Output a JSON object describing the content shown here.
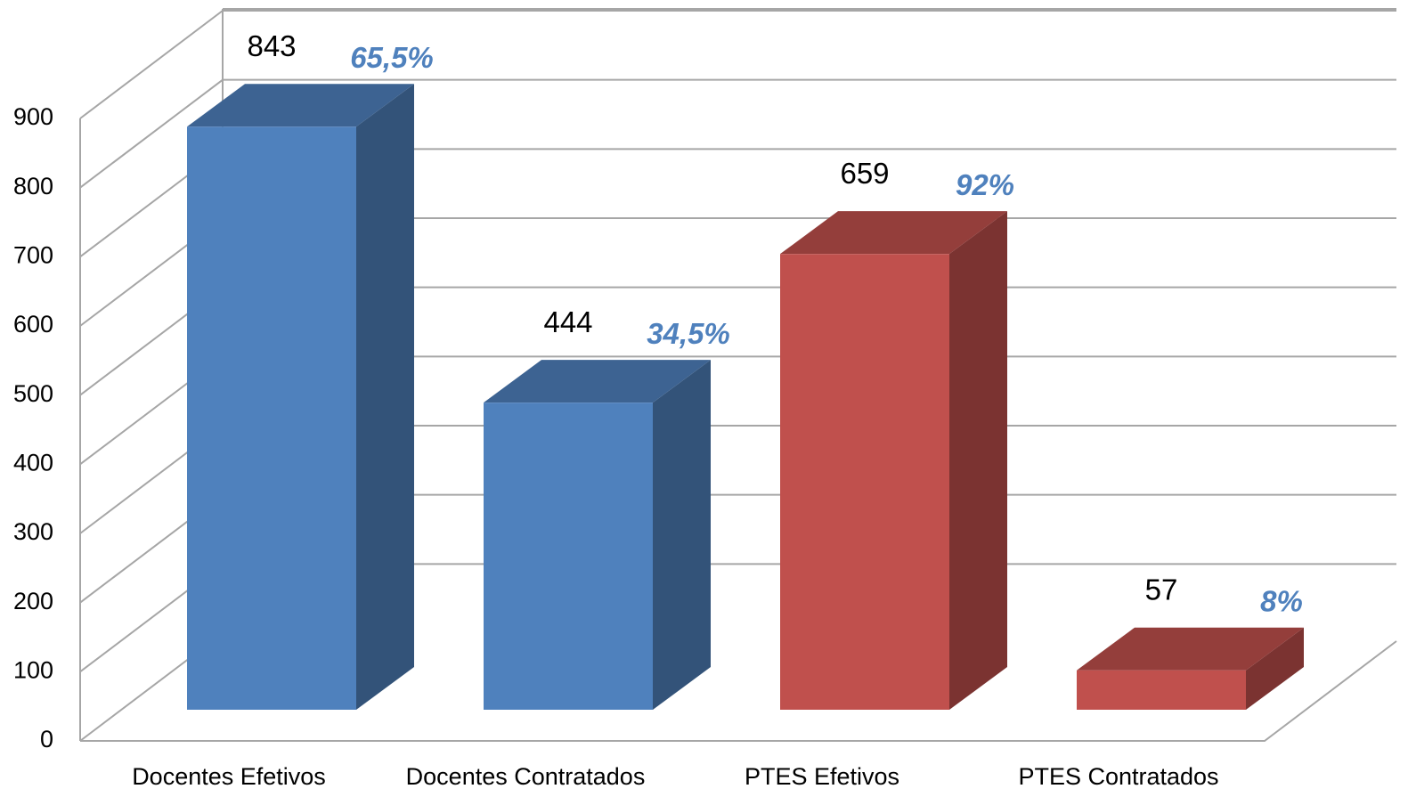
{
  "chart_data": {
    "type": "bar3d",
    "categories": [
      "Docentes Efetivos",
      "Docentes Contratados",
      "PTES Efetivos",
      "PTES Contratados"
    ],
    "values": [
      843,
      444,
      659,
      57
    ],
    "colors": [
      "#4f81bd",
      "#4f81bd",
      "#c0504d",
      "#c0504d"
    ],
    "annotations": [
      "65,5%",
      "34,5%",
      "92%",
      "8%"
    ],
    "annotation_color": "#4f81bd",
    "ylim": [
      0,
      900
    ],
    "yticks": [
      0,
      100,
      200,
      300,
      400,
      500,
      600,
      700,
      800,
      900
    ],
    "grid": true
  }
}
